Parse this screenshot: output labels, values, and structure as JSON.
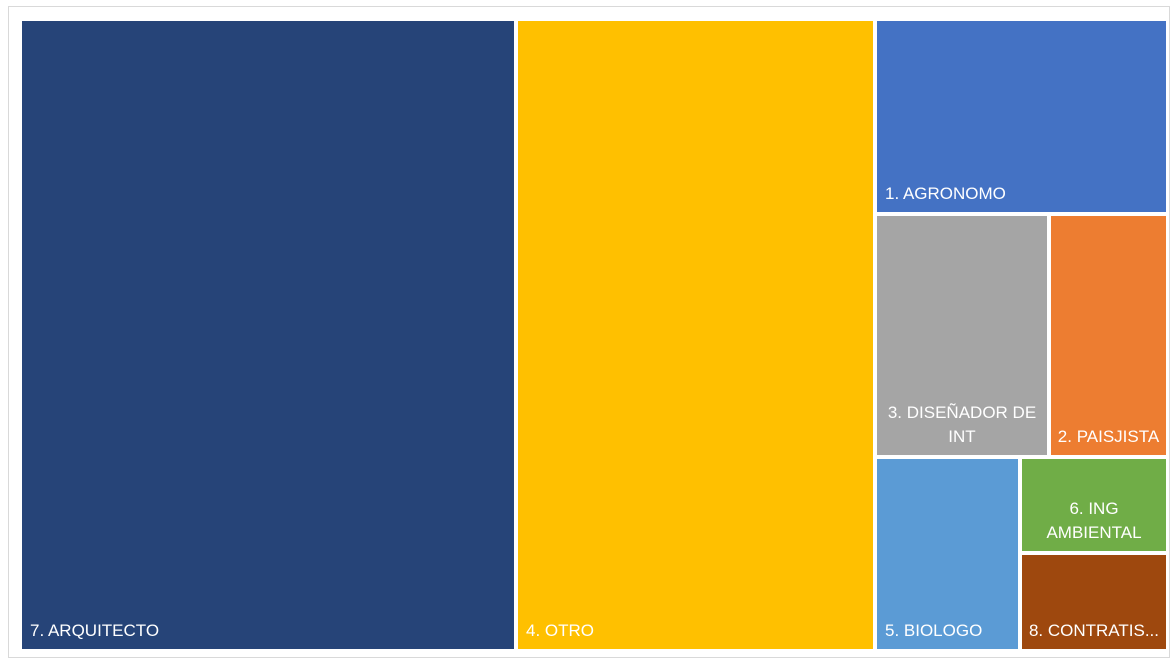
{
  "chart_data": {
    "type": "treemap",
    "title": "",
    "items": [
      {
        "label": "7. ARQUITECTO",
        "color": "#264478"
      },
      {
        "label": "4. OTRO",
        "color": "#ffc000"
      },
      {
        "label": "1. AGRONOMO",
        "color": "#4472c4"
      },
      {
        "label": "3. DISEÑADOR DE INT",
        "color": "#a5a5a5"
      },
      {
        "label": "2. PAISJISTA",
        "color": "#ed7d31"
      },
      {
        "label": "5. BIOLOGO",
        "color": "#5b9bd5"
      },
      {
        "label": "6. ING AMBIENTAL",
        "color": "#70ad47"
      },
      {
        "label": "8. CONTRATIS...",
        "color": "#9e480e"
      }
    ]
  }
}
